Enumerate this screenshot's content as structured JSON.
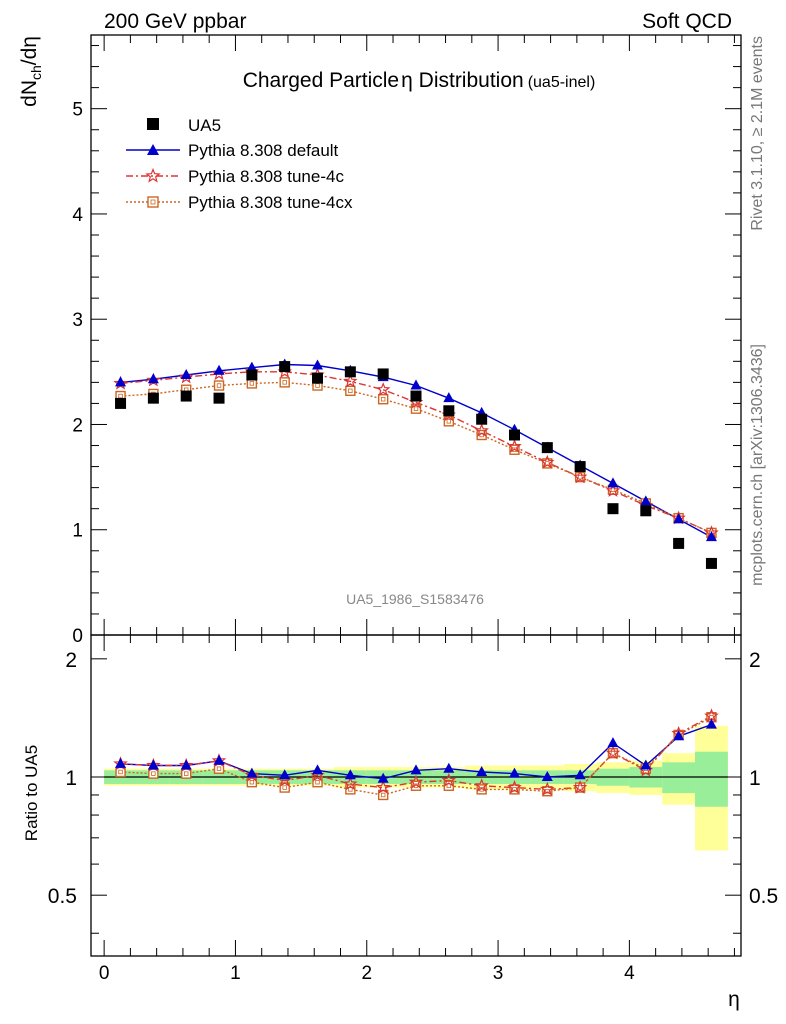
{
  "header": {
    "left": "200 GeV ppbar",
    "right": "Soft QCD"
  },
  "side_text": {
    "rivet": "Rivet 3.1.10, ≥ 2.1M events",
    "mcplots": "mcplots.cern.ch [arXiv:1306.3436]"
  },
  "watermark": "UA5_1986_S1583476",
  "chart_data": [
    {
      "type": "scatter",
      "title_main": "Charged Particle",
      "title_eta": "η",
      "title_rest": " Distribution",
      "title_sub": "(ua5-inel)",
      "ylabel_main": "dN",
      "ylabel_sub": "ch",
      "ylabel_end": "/dη",
      "xlabel": "η",
      "xlim": [
        -0.1,
        4.85
      ],
      "ylim": [
        0,
        5.7
      ],
      "yticks": [
        0,
        1,
        2,
        3,
        4,
        5
      ],
      "ytick_labels": [
        "0",
        "1",
        "2",
        "3",
        "4",
        "5"
      ],
      "x": [
        0.125,
        0.375,
        0.625,
        0.875,
        1.125,
        1.375,
        1.625,
        1.875,
        2.125,
        2.375,
        2.625,
        2.875,
        3.125,
        3.375,
        3.625,
        3.875,
        4.125,
        4.375,
        4.625
      ],
      "band_edges": [
        0,
        0.25,
        0.5,
        0.75,
        1.0,
        1.25,
        1.5,
        1.75,
        2.0,
        2.25,
        2.5,
        2.75,
        3.0,
        3.25,
        3.5,
        3.75,
        4.0,
        4.25,
        4.5,
        4.75
      ],
      "series": [
        {
          "name": "UA5",
          "color": "#000000",
          "marker": "square",
          "line": "none",
          "values": [
            2.2,
            2.25,
            2.27,
            2.25,
            2.47,
            2.55,
            2.44,
            2.5,
            2.48,
            2.27,
            2.13,
            2.05,
            1.9,
            1.78,
            1.6,
            1.2,
            1.18,
            0.87,
            0.68
          ]
        },
        {
          "name": "Pythia 8.308 default",
          "color": "#0000cc",
          "marker": "triangle",
          "line": "solid",
          "values": [
            2.4,
            2.43,
            2.47,
            2.51,
            2.54,
            2.57,
            2.56,
            2.51,
            2.45,
            2.37,
            2.25,
            2.11,
            1.95,
            1.78,
            1.61,
            1.44,
            1.27,
            1.1,
            0.93
          ]
        },
        {
          "name": "Pythia 8.308 tune-4c",
          "color": "#dd3333",
          "marker": "star",
          "line": "dashdot",
          "values": [
            2.39,
            2.42,
            2.45,
            2.48,
            2.5,
            2.5,
            2.47,
            2.41,
            2.33,
            2.21,
            2.09,
            1.94,
            1.79,
            1.64,
            1.5,
            1.37,
            1.23,
            1.11,
            0.97
          ]
        },
        {
          "name": "Pythia 8.308 tune-4cx",
          "color": "#cc6622",
          "marker": "open-square",
          "line": "dotted",
          "values": [
            2.27,
            2.29,
            2.33,
            2.37,
            2.39,
            2.4,
            2.37,
            2.32,
            2.24,
            2.15,
            2.03,
            1.9,
            1.76,
            1.63,
            1.5,
            1.38,
            1.25,
            1.11,
            0.97
          ]
        }
      ]
    },
    {
      "type": "line",
      "ylabel": "Ratio to UA5",
      "xlim": [
        -0.1,
        4.85
      ],
      "ylim": [
        0.35,
        2.3
      ],
      "yticks": [
        0.5,
        1,
        2
      ],
      "ytick_labels": [
        "0.5",
        "1",
        "2"
      ],
      "xticks": [
        0,
        1,
        2,
        3,
        4
      ],
      "xtick_labels": [
        "0",
        "1",
        "2",
        "3",
        "4"
      ],
      "reference_line": 1,
      "band_green_half": [
        0.04,
        0.04,
        0.04,
        0.04,
        0.04,
        0.04,
        0.04,
        0.04,
        0.04,
        0.04,
        0.04,
        0.04,
        0.04,
        0.04,
        0.04,
        0.05,
        0.06,
        0.09,
        0.16
      ],
      "band_yellow_half": [
        0.05,
        0.05,
        0.05,
        0.05,
        0.05,
        0.05,
        0.05,
        0.06,
        0.06,
        0.06,
        0.06,
        0.07,
        0.07,
        0.07,
        0.08,
        0.09,
        0.1,
        0.15,
        0.35
      ],
      "series": [
        {
          "name": "Pythia 8.308 default",
          "color": "#0000cc",
          "values": [
            1.08,
            1.07,
            1.07,
            1.1,
            1.02,
            1.01,
            1.04,
            1.01,
            0.99,
            1.04,
            1.05,
            1.03,
            1.02,
            1.0,
            1.01,
            1.22,
            1.07,
            1.27,
            1.36
          ]
        },
        {
          "name": "Pythia 8.308 tune-4c",
          "color": "#dd3333",
          "values": [
            1.08,
            1.07,
            1.07,
            1.1,
            1.01,
            0.98,
            1.01,
            0.96,
            0.94,
            0.97,
            0.98,
            0.95,
            0.94,
            0.93,
            0.94,
            1.15,
            1.04,
            1.29,
            1.43
          ]
        },
        {
          "name": "Pythia 8.308 tune-4cx",
          "color": "#cc6622",
          "values": [
            1.03,
            1.02,
            1.02,
            1.05,
            0.97,
            0.94,
            0.97,
            0.93,
            0.9,
            0.95,
            0.95,
            0.93,
            0.93,
            0.92,
            0.94,
            1.15,
            1.05,
            1.28,
            1.42
          ]
        }
      ]
    }
  ]
}
